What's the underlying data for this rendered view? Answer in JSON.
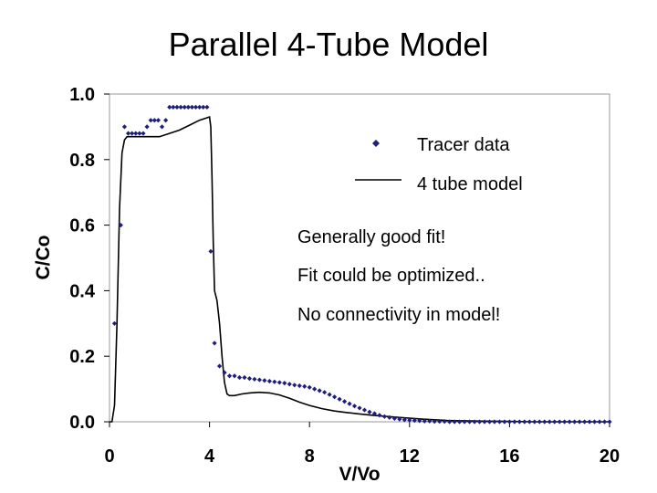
{
  "slide": {
    "title": "Parallel 4-Tube Model"
  },
  "chart_data": {
    "type": "scatter",
    "xlabel": "V/Vo",
    "ylabel": "C/Co",
    "xlim": [
      0,
      20
    ],
    "ylim": [
      0,
      1.0
    ],
    "x_ticks": [
      0,
      4,
      8,
      12,
      16,
      20
    ],
    "y_ticks": [
      0.0,
      0.2,
      0.4,
      0.6,
      0.8,
      1.0
    ],
    "x_tick_labels": [
      "0",
      "4",
      "8",
      "12",
      "16",
      "20"
    ],
    "y_tick_labels": [
      "0.0",
      "0.2",
      "0.4",
      "0.6",
      "0.8",
      "1.0"
    ],
    "grid": false,
    "legend_position": "top-right",
    "series": [
      {
        "name": "Tracer data",
        "style": "markers",
        "marker": "diamond",
        "color": "#1f1f7a",
        "x": [
          0.2,
          0.45,
          0.6,
          0.75,
          0.9,
          1.05,
          1.2,
          1.35,
          1.5,
          1.65,
          1.8,
          1.95,
          2.1,
          2.25,
          2.4,
          2.55,
          2.7,
          2.85,
          3.0,
          3.15,
          3.3,
          3.45,
          3.6,
          3.75,
          3.9,
          4.05,
          4.2,
          4.4,
          4.6,
          4.8,
          5.0,
          5.2,
          5.4,
          5.6,
          5.8,
          6.0,
          6.2,
          6.4,
          6.6,
          6.8,
          7.0,
          7.2,
          7.4,
          7.6,
          7.8,
          8.0,
          8.2,
          8.4,
          8.6,
          8.8,
          9.0,
          9.2,
          9.4,
          9.6,
          9.8,
          10.0,
          10.2,
          10.4,
          10.6,
          10.8,
          11.0,
          11.2,
          11.4,
          11.6,
          11.8,
          12.0,
          12.2,
          12.4,
          12.6,
          12.8,
          13.0,
          13.2,
          13.4,
          13.6,
          13.8,
          14.0,
          14.2,
          14.4,
          14.6,
          14.8,
          15.0,
          15.2,
          15.4,
          15.6,
          15.8,
          16.0,
          16.2,
          16.4,
          16.6,
          16.8,
          17.0,
          17.2,
          17.4,
          17.6,
          17.8,
          18.0,
          18.2,
          18.4,
          18.6,
          18.8,
          19.0,
          19.2,
          19.4,
          19.6,
          19.8,
          20.0
        ],
        "y": [
          0.3,
          0.6,
          0.9,
          0.88,
          0.88,
          0.88,
          0.88,
          0.88,
          0.9,
          0.92,
          0.92,
          0.92,
          0.9,
          0.92,
          0.96,
          0.96,
          0.96,
          0.96,
          0.96,
          0.96,
          0.96,
          0.96,
          0.96,
          0.96,
          0.96,
          0.52,
          0.24,
          0.17,
          0.15,
          0.14,
          0.14,
          0.135,
          0.135,
          0.132,
          0.13,
          0.128,
          0.126,
          0.124,
          0.122,
          0.12,
          0.118,
          0.115,
          0.112,
          0.11,
          0.108,
          0.105,
          0.1,
          0.095,
          0.09,
          0.083,
          0.076,
          0.069,
          0.062,
          0.055,
          0.048,
          0.042,
          0.036,
          0.03,
          0.025,
          0.02,
          0.016,
          0.013,
          0.01,
          0.008,
          0.006,
          0.005,
          0.004,
          0.003,
          0.002,
          0.002,
          0.001,
          0.001,
          0.001,
          0.0,
          0.0,
          0.0,
          0.0,
          0.0,
          0.0,
          0.0,
          0.0,
          0.0,
          0.0,
          0.0,
          0.0,
          0.0,
          0.0,
          0.0,
          0.0,
          0.0,
          0.0,
          0.0,
          0.0,
          0.0,
          0.0,
          0.0,
          0.0,
          0.0,
          0.0,
          0.0,
          0.0,
          0.0,
          0.0,
          0.0,
          0.0,
          0.0
        ]
      },
      {
        "name": "4 tube model",
        "style": "line",
        "color": "#000000",
        "x": [
          0.0,
          0.1,
          0.2,
          0.3,
          0.4,
          0.5,
          0.6,
          0.7,
          0.9,
          1.2,
          1.6,
          2.0,
          2.4,
          2.8,
          3.2,
          3.6,
          4.0,
          4.05,
          4.1,
          4.15,
          4.2,
          4.3,
          4.4,
          4.5,
          4.6,
          4.7,
          4.8,
          5.0,
          5.3,
          5.6,
          6.0,
          6.4,
          6.8,
          7.2,
          7.6,
          8.0,
          8.5,
          9.0,
          9.5,
          10.0,
          10.5,
          11.0,
          11.5,
          12.0,
          12.5,
          13.0,
          13.5,
          14.0,
          15.0,
          16.0,
          17.0,
          18.0,
          19.0,
          20.0
        ],
        "y": [
          0.0,
          0.0,
          0.05,
          0.3,
          0.65,
          0.82,
          0.86,
          0.87,
          0.87,
          0.87,
          0.87,
          0.87,
          0.88,
          0.89,
          0.905,
          0.92,
          0.93,
          0.9,
          0.75,
          0.55,
          0.4,
          0.37,
          0.3,
          0.2,
          0.12,
          0.085,
          0.08,
          0.08,
          0.085,
          0.088,
          0.09,
          0.088,
          0.082,
          0.072,
          0.06,
          0.05,
          0.04,
          0.033,
          0.028,
          0.024,
          0.02,
          0.017,
          0.014,
          0.011,
          0.008,
          0.006,
          0.004,
          0.003,
          0.002,
          0.001,
          0.0,
          0.0,
          0.0,
          0.0
        ]
      }
    ],
    "annotations": [
      "Generally good fit!",
      "Fit could be optimized..",
      "No connectivity in model!"
    ]
  }
}
